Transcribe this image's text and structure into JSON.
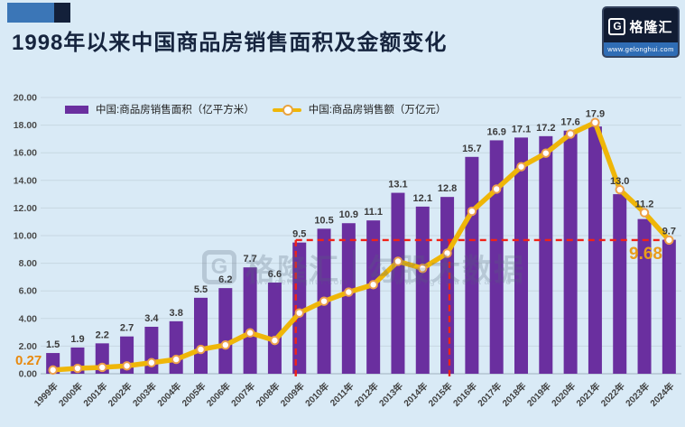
{
  "header": {
    "title": "1998年以来中国商品房销售面积及金额变化"
  },
  "logo": {
    "glyph": "G",
    "brand": "格隆汇",
    "url": "www.gelonghui.com"
  },
  "watermark": {
    "glyph": "G",
    "brand": "格隆汇",
    "partner": "勾股大数据",
    "brand_url": "www.gelonghui.com",
    "partner_url": "www.gegudata.com"
  },
  "legend": {
    "items": [
      {
        "label": "中国:商品房销售面积（亿平方米）",
        "type": "bar",
        "color": "#6A2F9F"
      },
      {
        "label": "中国:商品房销售额（万亿元）",
        "type": "line",
        "color": "#EFB608"
      }
    ]
  },
  "annotations": {
    "line_start": "0.27",
    "line_end": "9.68"
  },
  "chart_data": {
    "type": "bar+line combo",
    "title": "1998年以来中国商品房销售面积及金额变化",
    "categories": [
      "1999年",
      "2000年",
      "2001年",
      "2002年",
      "2003年",
      "2004年",
      "2005年",
      "2006年",
      "2007年",
      "2008年",
      "2009年",
      "2010年",
      "2011年",
      "2012年",
      "2013年",
      "2014年",
      "2015年",
      "2016年",
      "2017年",
      "2018年",
      "2019年",
      "2020年",
      "2021年",
      "2022年",
      "2023年",
      "2024年"
    ],
    "series": [
      {
        "name": "中国:商品房销售面积（亿平方米）",
        "type": "bar",
        "color": "#6A2F9F",
        "values": [
          1.5,
          1.9,
          2.2,
          2.7,
          3.4,
          3.8,
          5.5,
          6.2,
          7.7,
          6.6,
          9.5,
          10.5,
          10.9,
          11.1,
          13.1,
          12.1,
          12.8,
          15.7,
          16.9,
          17.1,
          17.2,
          17.6,
          17.9,
          13.0,
          11.2,
          9.7
        ]
      },
      {
        "name": "中国:商品房销售额（万亿元）",
        "type": "line",
        "color": "#EFB608",
        "values": [
          0.27,
          0.39,
          0.46,
          0.57,
          0.8,
          1.04,
          1.76,
          2.08,
          2.96,
          2.41,
          4.4,
          5.25,
          5.91,
          6.45,
          8.14,
          7.63,
          8.73,
          11.76,
          13.37,
          14.99,
          15.97,
          17.36,
          18.19,
          13.33,
          11.66,
          9.68
        ],
        "first_point_label": "0.27",
        "last_point_label": "9.68"
      }
    ],
    "ylim": [
      0,
      20
    ],
    "y_ticks": [
      "0.00",
      "2.00",
      "4.00",
      "6.00",
      "8.00",
      "10.00",
      "12.00",
      "14.00",
      "16.00",
      "18.00",
      "20.00"
    ],
    "grid": true,
    "legend_position": "top-left",
    "reference_lines": {
      "horizontal_value": 9.68,
      "vertical_at_categories": [
        "2009年",
        "2015年/2016年"
      ],
      "color": "#F02318",
      "style": "dashed"
    }
  }
}
